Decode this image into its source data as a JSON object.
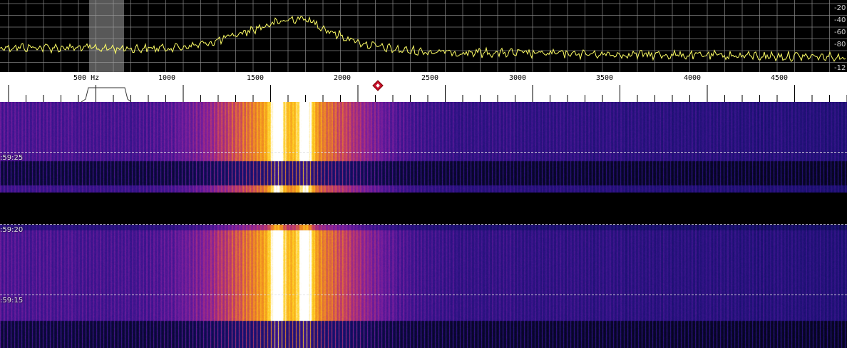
{
  "spectrum": {
    "db_labels": [
      "-20",
      "-40",
      "-60",
      "-80",
      "-12"
    ],
    "trace_color": "#ffff66",
    "grid_color": "#8a8a8a"
  },
  "ruler": {
    "unit_label": "500 Hz",
    "freq_labels": [
      "1000",
      "1500",
      "2000",
      "2500",
      "3000",
      "3500",
      "4000",
      "4500"
    ],
    "marker_icon": "diamond-marker-icon"
  },
  "waterfall": {
    "timestamps": [
      ":59:25",
      ":59:20",
      ":59:15"
    ],
    "palette": [
      "#000000",
      "#14106a",
      "#3a148e",
      "#7a1ea0",
      "#c03a6a",
      "#f08a20",
      "#ffd020",
      "#ffffff"
    ]
  }
}
